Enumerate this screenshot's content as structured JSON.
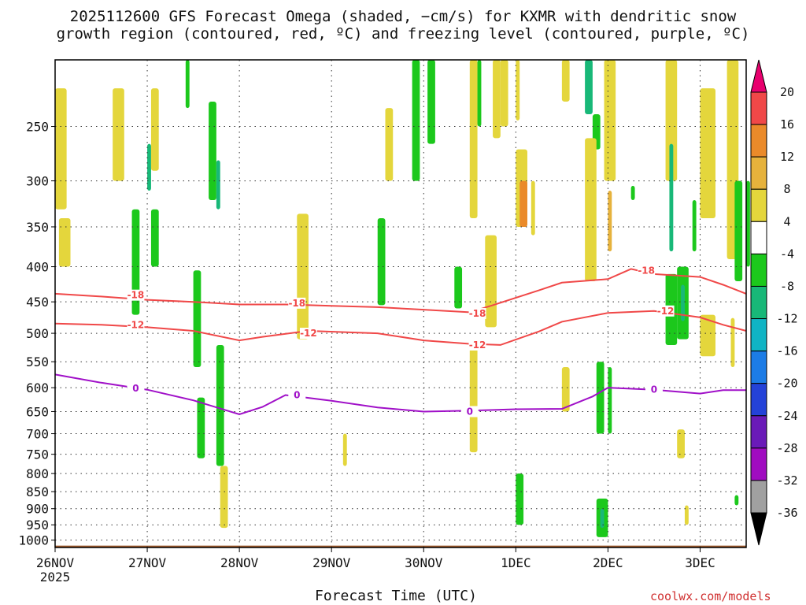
{
  "title_line1": "2025112600 GFS Forecast Omega (shaded, −cm/s) for KXMR with dendritic snow",
  "title_line2": "growth region (contoured, red, ºC) and freezing level (contoured, purple, ºC)",
  "xlabel": "Forecast Time (UTC)",
  "credit": "coolwx.com/models",
  "chart_data": {
    "type": "heatmap",
    "x_ticks": [
      {
        "time": "2025-11-26T00",
        "label": "26NOV",
        "sublabel": "2025"
      },
      {
        "time": "2025-11-27T00",
        "label": "27NOV"
      },
      {
        "time": "2025-11-28T00",
        "label": "28NOV"
      },
      {
        "time": "2025-11-29T00",
        "label": "29NOV"
      },
      {
        "time": "2025-11-30T00",
        "label": "30NOV"
      },
      {
        "time": "2025-12-01T00",
        "label": "1DEC"
      },
      {
        "time": "2025-12-02T00",
        "label": "2DEC"
      },
      {
        "time": "2025-12-03T00",
        "label": "3DEC"
      }
    ],
    "xlim": [
      "2025-11-26T00",
      "2025-12-03T12"
    ],
    "y_levels": [
      250,
      300,
      350,
      400,
      450,
      500,
      550,
      600,
      650,
      700,
      750,
      800,
      850,
      900,
      950,
      1000
    ],
    "ylim_hpa": [
      200,
      1025
    ],
    "yscale": "log-pressure",
    "grid": true,
    "colorbar": {
      "levels": [
        20,
        16,
        12,
        8,
        4,
        -4,
        -8,
        -12,
        -16,
        -20,
        -24,
        -28,
        -32,
        -36
      ],
      "colors": [
        "#e8006e",
        "#f04848",
        "#ea8a2a",
        "#e6b23c",
        "#e4d63c",
        "#ffffff",
        "#1cc81c",
        "#18b878",
        "#10b4c4",
        "#1c7ce6",
        "#2442d8",
        "#6a1ab8",
        "#a00cc0",
        "#a0a0a0",
        "#000000"
      ]
    },
    "surface_color": "#9e5a2c",
    "contours": [
      {
        "value": -18,
        "label": "-18",
        "color": "#f04848",
        "points": [
          [
            "2025-11-26T00",
            438
          ],
          [
            "2025-11-26T12",
            442
          ],
          [
            "2025-11-27T00",
            447
          ],
          [
            "2025-11-27T12",
            450
          ],
          [
            "2025-11-28T00",
            454
          ],
          [
            "2025-11-28T12",
            454
          ],
          [
            "2025-11-29T00",
            456
          ],
          [
            "2025-11-29T12",
            458
          ],
          [
            "2025-11-30T00",
            462
          ],
          [
            "2025-11-30T12",
            466
          ],
          [
            "2025-11-30T18",
            455
          ],
          [
            "2025-12-01T06",
            433
          ],
          [
            "2025-12-01T12",
            422
          ],
          [
            "2025-12-02T00",
            417
          ],
          [
            "2025-12-02T06",
            403
          ],
          [
            "2025-12-02T12",
            410
          ],
          [
            "2025-12-03T00",
            414
          ],
          [
            "2025-12-03T06",
            425
          ],
          [
            "2025-12-03T12",
            438
          ]
        ],
        "label_positions": [
          [
            "2025-11-26T21",
            440
          ],
          [
            "2025-11-28T15",
            452
          ],
          [
            "2025-11-30T14",
            468
          ],
          [
            "2025-12-02T10",
            405
          ]
        ]
      },
      {
        "value": -12,
        "label": "-12",
        "color": "#f04848",
        "points": [
          [
            "2025-11-26T00",
            484
          ],
          [
            "2025-11-26T12",
            486
          ],
          [
            "2025-11-27T00",
            490
          ],
          [
            "2025-11-27T12",
            496
          ],
          [
            "2025-11-28T00",
            512
          ],
          [
            "2025-11-28T06",
            506
          ],
          [
            "2025-11-28T18",
            496
          ],
          [
            "2025-11-29T12",
            500
          ],
          [
            "2025-11-30T00",
            512
          ],
          [
            "2025-11-30T12",
            518
          ],
          [
            "2025-11-30T20",
            520
          ],
          [
            "2025-12-01T06",
            497
          ],
          [
            "2025-12-01T12",
            481
          ],
          [
            "2025-12-02T00",
            467
          ],
          [
            "2025-12-02T12",
            464
          ],
          [
            "2025-12-03T00",
            474
          ],
          [
            "2025-12-03T06",
            486
          ],
          [
            "2025-12-03T12",
            496
          ]
        ],
        "label_positions": [
          [
            "2025-11-26T21",
            486
          ],
          [
            "2025-11-28T18",
            500
          ],
          [
            "2025-11-30T14",
            520
          ],
          [
            "2025-12-02T15",
            464
          ]
        ]
      },
      {
        "value": 0,
        "label": "0",
        "color": "#a010c8",
        "points": [
          [
            "2025-11-26T00",
            574
          ],
          [
            "2025-11-26T12",
            590
          ],
          [
            "2025-11-27T00",
            604
          ],
          [
            "2025-11-27T12",
            626
          ],
          [
            "2025-11-28T00",
            656
          ],
          [
            "2025-11-28T06",
            640
          ],
          [
            "2025-11-28T12",
            615
          ],
          [
            "2025-11-29T00",
            627
          ],
          [
            "2025-11-29T12",
            641
          ],
          [
            "2025-11-30T00",
            650
          ],
          [
            "2025-11-30T12",
            648
          ],
          [
            "2025-12-01T00",
            645
          ],
          [
            "2025-12-01T12",
            644
          ],
          [
            "2025-12-01T20",
            618
          ],
          [
            "2025-12-02T00",
            600
          ],
          [
            "2025-12-02T12",
            604
          ],
          [
            "2025-12-03T00",
            612
          ],
          [
            "2025-12-03T06",
            605
          ],
          [
            "2025-12-03T12",
            605
          ]
        ],
        "label_positions": [
          [
            "2025-11-26T21",
            601
          ],
          [
            "2025-11-28T15",
            615
          ],
          [
            "2025-11-30T12",
            650
          ],
          [
            "2025-12-02T12",
            604
          ]
        ]
      }
    ],
    "omega_cells": [
      {
        "t0": "2025-11-26T00",
        "t1": "2025-11-26T03",
        "p0": 220,
        "p1": 330,
        "v": 6
      },
      {
        "t0": "2025-11-26T01",
        "t1": "2025-11-26T04",
        "p0": 340,
        "p1": 400,
        "v": 6
      },
      {
        "t0": "2025-11-26T15",
        "t1": "2025-11-26T18",
        "p0": 220,
        "p1": 300,
        "v": 6
      },
      {
        "t0": "2025-11-27T00",
        "t1": "2025-11-27T01",
        "p0": 265,
        "p1": 310,
        "v": -10
      },
      {
        "t0": "2025-11-26T20",
        "t1": "2025-11-26T22",
        "p0": 330,
        "p1": 470,
        "v": -6
      },
      {
        "t0": "2025-11-27T01",
        "t1": "2025-11-27T03",
        "p0": 330,
        "p1": 400,
        "v": -6
      },
      {
        "t0": "2025-11-27T01",
        "t1": "2025-11-27T03",
        "p0": 220,
        "p1": 290,
        "v": 6
      },
      {
        "t0": "2025-11-27T12",
        "t1": "2025-11-27T14",
        "p0": 405,
        "p1": 560,
        "v": -6
      },
      {
        "t0": "2025-11-27T13",
        "t1": "2025-11-27T15",
        "p0": 620,
        "p1": 760,
        "v": -6
      },
      {
        "t0": "2025-11-27T18",
        "t1": "2025-11-27T20",
        "p0": 520,
        "p1": 780,
        "v": -6
      },
      {
        "t0": "2025-11-27T16",
        "t1": "2025-11-27T18",
        "p0": 230,
        "p1": 320,
        "v": -6
      },
      {
        "t0": "2025-11-27T18",
        "t1": "2025-11-27T19",
        "p0": 280,
        "p1": 330,
        "v": -10
      },
      {
        "t0": "2025-11-27T19",
        "t1": "2025-11-27T21",
        "p0": 780,
        "p1": 960,
        "v": 6
      },
      {
        "t0": "2025-11-27T10",
        "t1": "2025-11-27T11",
        "p0": 200,
        "p1": 235,
        "v": -6
      },
      {
        "t0": "2025-11-28T15",
        "t1": "2025-11-28T18",
        "p0": 335,
        "p1": 510,
        "v": 6
      },
      {
        "t0": "2025-11-29T03",
        "t1": "2025-11-29T04",
        "p0": 700,
        "p1": 780,
        "v": 6
      },
      {
        "t0": "2025-11-29T12",
        "t1": "2025-11-29T14",
        "p0": 340,
        "p1": 455,
        "v": -6
      },
      {
        "t0": "2025-11-29T14",
        "t1": "2025-11-29T16",
        "p0": 235,
        "p1": 300,
        "v": 6
      },
      {
        "t0": "2025-11-29T21",
        "t1": "2025-11-29T23",
        "p0": 200,
        "p1": 300,
        "v": -6
      },
      {
        "t0": "2025-11-30T01",
        "t1": "2025-11-30T03",
        "p0": 200,
        "p1": 265,
        "v": -6
      },
      {
        "t0": "2025-11-30T08",
        "t1": "2025-11-30T10",
        "p0": 400,
        "p1": 460,
        "v": -6
      },
      {
        "t0": "2025-11-30T12",
        "t1": "2025-11-30T14",
        "p0": 200,
        "p1": 340,
        "v": 6
      },
      {
        "t0": "2025-11-30T12",
        "t1": "2025-11-30T14",
        "p0": 525,
        "p1": 745,
        "v": 6
      },
      {
        "t0": "2025-11-30T14",
        "t1": "2025-11-30T15",
        "p0": 200,
        "p1": 250,
        "v": -6
      },
      {
        "t0": "2025-11-30T16",
        "t1": "2025-11-30T19",
        "p0": 360,
        "p1": 490,
        "v": 6
      },
      {
        "t0": "2025-11-30T18",
        "t1": "2025-11-30T20",
        "p0": 200,
        "p1": 260,
        "v": 6
      },
      {
        "t0": "2025-11-30T20",
        "t1": "2025-11-30T22",
        "p0": 200,
        "p1": 250,
        "v": 6
      },
      {
        "t0": "2025-12-01T00",
        "t1": "2025-12-01T01",
        "p0": 200,
        "p1": 245,
        "v": 6
      },
      {
        "t0": "2025-12-01T00",
        "t1": "2025-12-01T03",
        "p0": 270,
        "p1": 350,
        "v": 6
      },
      {
        "t0": "2025-12-01T01",
        "t1": "2025-12-01T03",
        "p0": 300,
        "p1": 350,
        "v": 14
      },
      {
        "t0": "2025-12-01T04",
        "t1": "2025-12-01T05",
        "p0": 300,
        "p1": 360,
        "v": 6
      },
      {
        "t0": "2025-12-01T00",
        "t1": "2025-12-01T02",
        "p0": 800,
        "p1": 950,
        "v": -6
      },
      {
        "t0": "2025-12-01T12",
        "t1": "2025-12-01T14",
        "p0": 200,
        "p1": 230,
        "v": 6
      },
      {
        "t0": "2025-12-01T12",
        "t1": "2025-12-01T14",
        "p0": 560,
        "p1": 650,
        "v": 6
      },
      {
        "t0": "2025-12-01T18",
        "t1": "2025-12-01T20",
        "p0": 200,
        "p1": 240,
        "v": -10
      },
      {
        "t0": "2025-12-01T20",
        "t1": "2025-12-01T22",
        "p0": 240,
        "p1": 270,
        "v": -6
      },
      {
        "t0": "2025-12-01T18",
        "t1": "2025-12-01T21",
        "p0": 260,
        "p1": 420,
        "v": 6
      },
      {
        "t0": "2025-12-01T23",
        "t1": "2025-12-02T02",
        "p0": 200,
        "p1": 300,
        "v": 6
      },
      {
        "t0": "2025-12-02T00",
        "t1": "2025-12-02T01",
        "p0": 310,
        "p1": 380,
        "v": 10
      },
      {
        "t0": "2025-12-01T21",
        "t1": "2025-12-01T23",
        "p0": 550,
        "p1": 700,
        "v": -6
      },
      {
        "t0": "2025-12-02T00",
        "t1": "2025-12-02T01",
        "p0": 560,
        "p1": 700,
        "v": -6
      },
      {
        "t0": "2025-12-01T21",
        "t1": "2025-12-02T00",
        "p0": 870,
        "p1": 990,
        "v": -6
      },
      {
        "t0": "2025-12-01T22",
        "t1": "2025-12-01T23",
        "p0": 900,
        "p1": 960,
        "v": -10
      },
      {
        "t0": "2025-12-02T06",
        "t1": "2025-12-02T07",
        "p0": 305,
        "p1": 320,
        "v": -6
      },
      {
        "t0": "2025-12-02T15",
        "t1": "2025-12-02T18",
        "p0": 200,
        "p1": 300,
        "v": 6
      },
      {
        "t0": "2025-12-02T15",
        "t1": "2025-12-02T18",
        "p0": 410,
        "p1": 520,
        "v": -6
      },
      {
        "t0": "2025-12-02T18",
        "t1": "2025-12-02T21",
        "p0": 400,
        "p1": 510,
        "v": -6
      },
      {
        "t0": "2025-12-02T19",
        "t1": "2025-12-02T20",
        "p0": 425,
        "p1": 480,
        "v": -10
      },
      {
        "t0": "2025-12-02T16",
        "t1": "2025-12-02T17",
        "p0": 265,
        "p1": 380,
        "v": -10
      },
      {
        "t0": "2025-12-02T18",
        "t1": "2025-12-02T20",
        "p0": 690,
        "p1": 760,
        "v": 6
      },
      {
        "t0": "2025-12-02T20",
        "t1": "2025-12-02T21",
        "p0": 890,
        "p1": 950,
        "v": 6
      },
      {
        "t0": "2025-12-02T22",
        "t1": "2025-12-02T23",
        "p0": 320,
        "p1": 380,
        "v": -6
      },
      {
        "t0": "2025-12-03T00",
        "t1": "2025-12-03T04",
        "p0": 470,
        "p1": 540,
        "v": 6
      },
      {
        "t0": "2025-12-03T00",
        "t1": "2025-12-03T04",
        "p0": 220,
        "p1": 340,
        "v": 6
      },
      {
        "t0": "2025-12-03T07",
        "t1": "2025-12-03T10",
        "p0": 200,
        "p1": 390,
        "v": 6
      },
      {
        "t0": "2025-12-03T08",
        "t1": "2025-12-03T09",
        "p0": 475,
        "p1": 560,
        "v": 6
      },
      {
        "t0": "2025-12-03T09",
        "t1": "2025-12-03T11",
        "p0": 300,
        "p1": 420,
        "v": -6
      },
      {
        "t0": "2025-12-03T12",
        "t1": "2025-12-03T13",
        "p0": 300,
        "p1": 400,
        "v": -6
      },
      {
        "t0": "2025-12-03T09",
        "t1": "2025-12-03T10",
        "p0": 860,
        "p1": 890,
        "v": -6
      }
    ]
  }
}
